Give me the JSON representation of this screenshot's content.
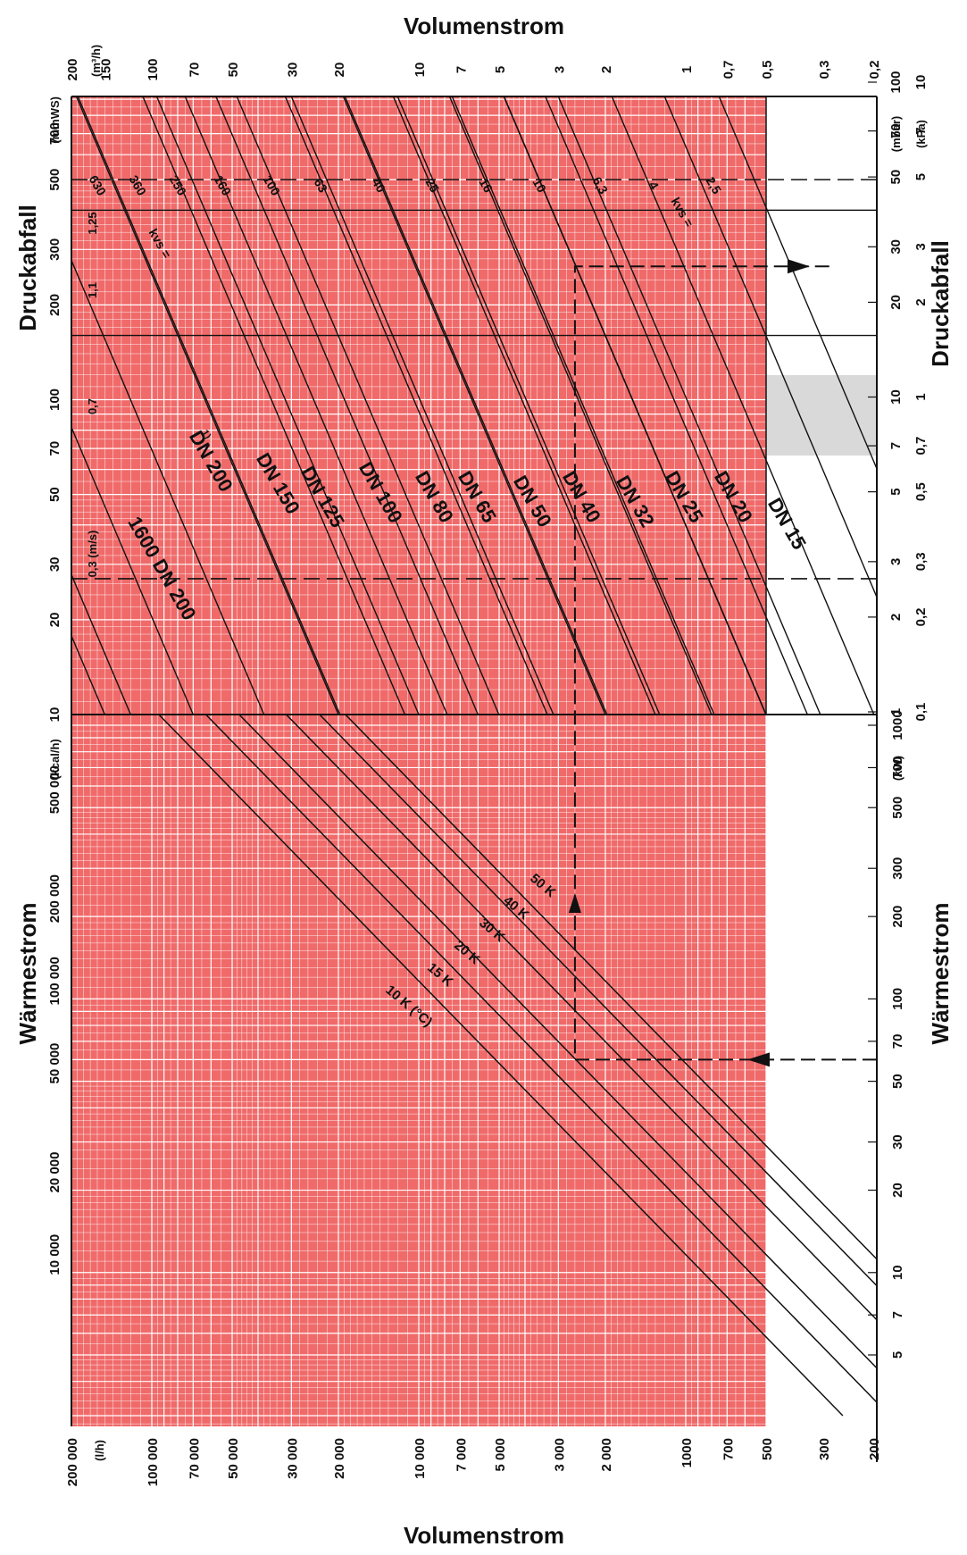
{
  "chart_data": {
    "type": "line",
    "titles": {
      "top": "Volumenstrom",
      "bottom": "Volumenstrom",
      "left_upper": "Druckabfall",
      "left_lower": "Wärmestrom",
      "right_upper": "Druckabfall",
      "right_lower": "Wärmestrom"
    },
    "units": {
      "flow_m3h": "(m³/h)",
      "flow_lh": "(l/h)",
      "pressure_mmws": "(mmWS)",
      "pressure_mbar": "(mbar)",
      "pressure_kpa": "(kPa)",
      "heat_kcal": "(kcal/h)",
      "heat_kw": "(kW)"
    },
    "axes": {
      "flow_m3h": {
        "range": [
          0.2,
          200
        ],
        "scale": "log",
        "ticks": [
          "200",
          "150",
          "100",
          "70",
          "50",
          "30",
          "20",
          "10",
          "7",
          "5",
          "3",
          "2",
          "1",
          "0,7",
          "0,5",
          "0,3",
          "0,2"
        ],
        "values": [
          200,
          150,
          100,
          70,
          50,
          30,
          20,
          10,
          7,
          5,
          3,
          2,
          1,
          0.7,
          0.5,
          0.3,
          0.2
        ]
      },
      "flow_lh": {
        "range": [
          200,
          200000
        ],
        "scale": "log",
        "ticks": [
          "200 000",
          "100 000",
          "70 000",
          "50 000",
          "30 000",
          "20 000",
          "10 000",
          "7 000",
          "5 000",
          "3 000",
          "2 000",
          "1000",
          "700",
          "500",
          "300",
          "200"
        ],
        "values": [
          200000,
          100000,
          70000,
          50000,
          30000,
          20000,
          10000,
          7000,
          5000,
          3000,
          2000,
          1000,
          700,
          500,
          300,
          200
        ]
      },
      "pressure_mmws": {
        "range": [
          10,
          1000
        ],
        "scale": "log",
        "ticks": [
          "10",
          "20",
          "30",
          "50",
          "70",
          "100",
          "200",
          "300",
          "500",
          "700"
        ],
        "values": [
          10,
          20,
          30,
          50,
          70,
          100,
          200,
          300,
          500,
          700
        ]
      },
      "pressure_mbar": {
        "ticks": [
          "1",
          "2",
          "3",
          "5",
          "7",
          "10",
          "20",
          "30",
          "50",
          "70",
          "100"
        ],
        "values": [
          1,
          2,
          3,
          5,
          7,
          10,
          20,
          30,
          50,
          70,
          100
        ]
      },
      "pressure_kpa": {
        "ticks": [
          "0,1",
          "0,2",
          "0,3",
          "0,5",
          "0,7",
          "1",
          "2",
          "3",
          "5",
          "7",
          "10"
        ],
        "values": [
          0.1,
          0.2,
          0.3,
          0.5,
          0.7,
          1,
          2,
          3,
          5,
          7,
          10
        ]
      },
      "heat_kcal": {
        "range": [
          3000,
          1000000
        ],
        "scale": "log",
        "ticks": [
          "10 000",
          "20 000",
          "50 000",
          "100 000",
          "200 000",
          "500 000"
        ],
        "values": [
          10000,
          20000,
          50000,
          100000,
          200000,
          500000
        ]
      },
      "heat_kw": {
        "range": [
          4,
          1200
        ],
        "scale": "log",
        "ticks": [
          "5",
          "7",
          "10",
          "20",
          "30",
          "50",
          "70",
          "100",
          "200",
          "300",
          "500",
          "700",
          "1000"
        ],
        "values": [
          5,
          7,
          10,
          20,
          30,
          50,
          70,
          100,
          200,
          300,
          500,
          700,
          1000
        ]
      }
    },
    "kvs_series": [
      {
        "label": "630",
        "kvs": 630
      },
      {
        "label": "360",
        "kvs": 360
      },
      {
        "label": "250",
        "kvs": 250
      },
      {
        "label": "160",
        "kvs": 160
      },
      {
        "label": "100",
        "kvs": 100
      },
      {
        "label": "63",
        "kvs": 63
      },
      {
        "label": "40",
        "kvs": 40
      },
      {
        "label": "25",
        "kvs": 25
      },
      {
        "label": "16",
        "kvs": 16
      },
      {
        "label": "10",
        "kvs": 10
      },
      {
        "label": "6,3",
        "kvs": 6.3
      },
      {
        "label": "4",
        "kvs": 4
      },
      {
        "label": "2,5",
        "kvs": 2.5
      }
    ],
    "kvs_prefix": "kvs =",
    "velocity_labels": [
      "0,3 (m/s)",
      "0,7",
      "1,1",
      "1,25"
    ],
    "dn_series": [
      {
        "label": "DN 200",
        "sup": "1)",
        "flow_at_10mmws": 120
      },
      {
        "label": "1600 DN 200",
        "sup": "",
        "flow_at_10mmws": 150
      },
      {
        "label": "DN 150",
        "sup": "",
        "flow_at_10mmws": 70
      },
      {
        "label": "DN 125",
        "sup": "",
        "flow_at_10mmws": 38
      },
      {
        "label": "DN 100",
        "sup": "",
        "flow_at_10mmws": 20
      },
      {
        "label": "DN 80",
        "sup": "",
        "flow_at_10mmws": 10
      },
      {
        "label": "DN 65",
        "sup": "",
        "flow_at_10mmws": 6
      },
      {
        "label": "DN 50",
        "sup": "",
        "flow_at_10mmws": 3.3
      },
      {
        "label": "DN 40",
        "sup": "",
        "flow_at_10mmws": 2
      },
      {
        "label": "DN 32",
        "sup": "",
        "flow_at_10mmws": 1.3
      },
      {
        "label": "DN 25",
        "sup": "",
        "flow_at_10mmws": 0.8
      },
      {
        "label": "DN 20",
        "sup": "",
        "flow_at_10mmws": 0.5
      },
      {
        "label": "DN 15",
        "sup": "",
        "flow_at_10mmws": 0.35
      }
    ],
    "delta_t_series": [
      {
        "label": "10 K (°C)",
        "dt": 10
      },
      {
        "label": "15 K",
        "dt": 15
      },
      {
        "label": "20 K",
        "dt": 20
      },
      {
        "label": "30 K",
        "dt": 30
      },
      {
        "label": "40 K",
        "dt": 40
      },
      {
        "label": "50 K",
        "dt": 50
      }
    ],
    "example": {
      "heat_kw": 60,
      "flow_m3h": 2.6,
      "pressure_mbar": 26
    },
    "grid": true,
    "background_color": "#f06a6a",
    "grid_color": "#ffffff",
    "line_color": "#111111"
  }
}
